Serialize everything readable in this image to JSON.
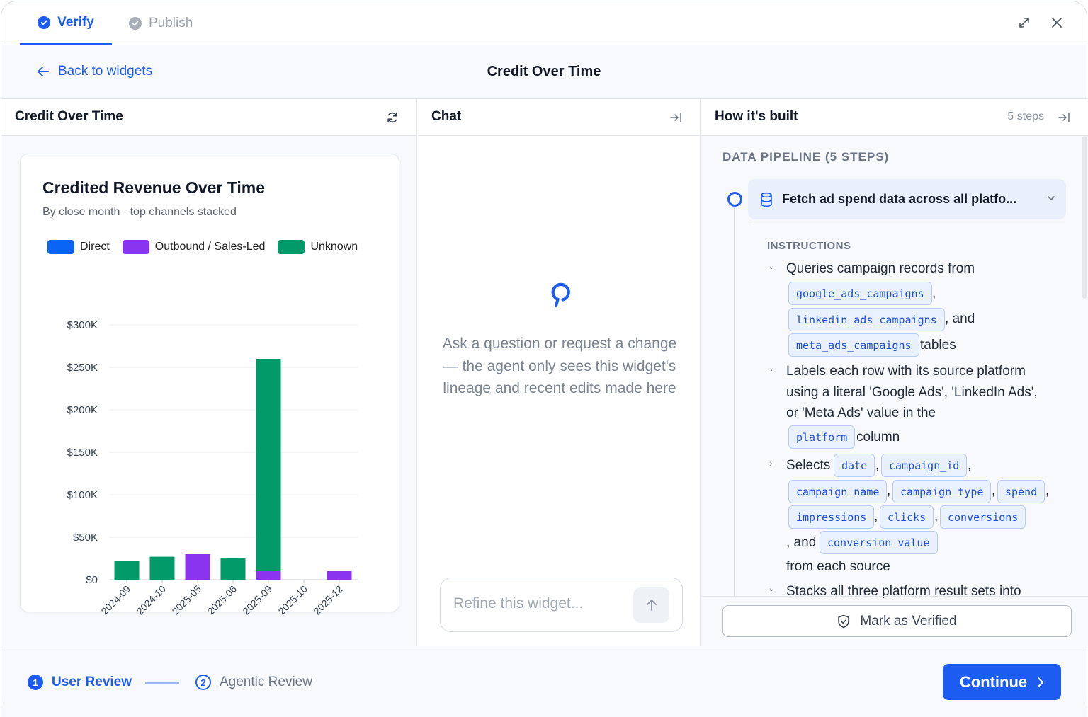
{
  "tabs": [
    {
      "label": "Verify",
      "active": true
    },
    {
      "label": "Publish",
      "active": false
    }
  ],
  "header": {
    "back_label": "Back to widgets",
    "title": "Credit Over Time"
  },
  "widget_panel": {
    "title": "Credit Over Time",
    "card_title": "Credited Revenue Over Time",
    "card_subtitle": "By close month · top channels stacked"
  },
  "chart_data": {
    "type": "bar",
    "stacked": true,
    "title": "Credited Revenue Over Time",
    "subtitle": "By close month · top channels stacked",
    "categories": [
      "2024-09",
      "2024-10",
      "2025-05",
      "2025-06",
      "2025-09",
      "2025-10",
      "2025-12"
    ],
    "series": [
      {
        "name": "Direct",
        "color": "#0a64f4",
        "values": [
          0,
          0,
          0,
          0,
          0,
          0,
          0
        ]
      },
      {
        "name": "Outbound / Sales-Led",
        "color": "#8b34f0",
        "values": [
          0,
          0,
          30000,
          0,
          10000,
          0,
          10000
        ]
      },
      {
        "name": "Unknown",
        "color": "#039a69",
        "values": [
          22500,
          27000,
          0,
          25000,
          250000,
          0,
          0
        ]
      }
    ],
    "y_ticks": [
      "$0",
      "$50K",
      "$100K",
      "$150K",
      "$200K",
      "$250K",
      "$300K"
    ],
    "ylim": [
      0,
      300000
    ],
    "grid": true,
    "legend_position": "top"
  },
  "chat": {
    "title": "Chat",
    "hint": "Ask a question or request a change — the agent only sees this widget's lineage and recent edits made here",
    "input_placeholder": "Refine this widget..."
  },
  "how_built": {
    "title": "How it's built",
    "steps_meta": "5 steps",
    "pipeline_title": "DATA PIPELINE (5 STEPS)",
    "step_title": "Fetch ad spend data across all platfo...",
    "instructions_label": "INSTRUCTIONS",
    "text": {
      "i1a": "Queries campaign records from",
      "comma": ",",
      "and": ", and",
      "tables": "tables",
      "i2a": "Labels each row with its source platform",
      "i2b": "using a literal 'Google Ads', 'LinkedIn Ads',",
      "i2c": "or 'Meta Ads' value in the",
      "column": "column",
      "selects": "Selects",
      "and2": ", and",
      "from_each": "from each source",
      "i4": "Stacks all three platform result sets into"
    },
    "chips": {
      "google": "google_ads_campaigns",
      "linkedin": "linkedin_ads_campaigns",
      "meta": "meta_ads_campaigns",
      "platform": "platform",
      "date": "date",
      "campaign_id": "campaign_id",
      "campaign_name": "campaign_name",
      "campaign_type": "campaign_type",
      "spend": "spend",
      "impressions": "impressions",
      "clicks": "clicks",
      "conversions": "conversions",
      "conversion_value": "conversion_value"
    },
    "verify_button": "Mark as Verified"
  },
  "footer": {
    "step1": {
      "number": "1",
      "label": "User Review"
    },
    "step2": {
      "number": "2",
      "label": "Agentic Review"
    },
    "continue_label": "Continue"
  },
  "colors": {
    "accent": "#1d5cf0"
  }
}
